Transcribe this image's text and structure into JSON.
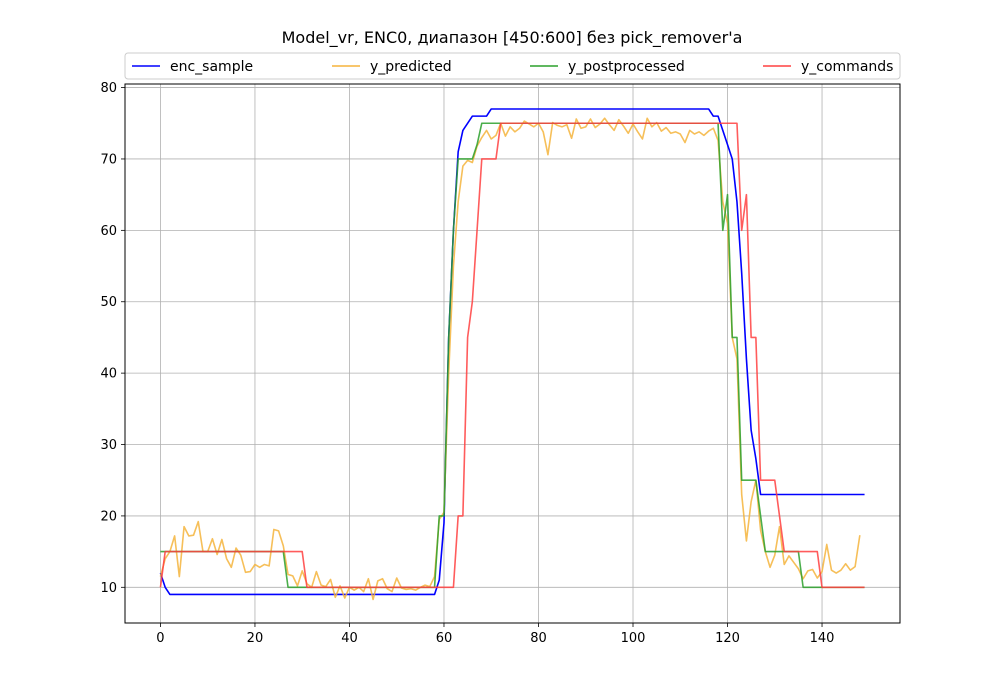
{
  "chart_data": {
    "type": "line",
    "title": "Model_vr, ENC0, диапазон [450:600] без pick_remover'а",
    "xlabel": "",
    "ylabel": "",
    "xlim": [
      -7.5,
      156.5
    ],
    "ylim": [
      5,
      80.5
    ],
    "xticks": [
      0,
      20,
      40,
      60,
      80,
      100,
      120,
      140
    ],
    "yticks": [
      10,
      20,
      30,
      40,
      50,
      60,
      70,
      80
    ],
    "xtick_labels": [
      "0",
      "20",
      "40",
      "60",
      "80",
      "100",
      "120",
      "140"
    ],
    "ytick_labels": [
      "10",
      "20",
      "30",
      "40",
      "50",
      "60",
      "70",
      "80"
    ],
    "grid": true,
    "legend": {
      "placement": "top",
      "columns": 4
    },
    "series": [
      {
        "name": "enc_sample",
        "color": "#0000ff",
        "points": [
          [
            0,
            12
          ],
          [
            1,
            10
          ],
          [
            2,
            9
          ],
          [
            58,
            9
          ],
          [
            59,
            11
          ],
          [
            60,
            19
          ],
          [
            61,
            45
          ],
          [
            62,
            60
          ],
          [
            63,
            71
          ],
          [
            64,
            74
          ],
          [
            65,
            75
          ],
          [
            66,
            76
          ],
          [
            69,
            76
          ],
          [
            70,
            77
          ],
          [
            116,
            77
          ],
          [
            117,
            76
          ],
          [
            118,
            76
          ],
          [
            119,
            74
          ],
          [
            120,
            72
          ],
          [
            121,
            70
          ],
          [
            122,
            64
          ],
          [
            123,
            54
          ],
          [
            124,
            42
          ],
          [
            125,
            32
          ],
          [
            126,
            28
          ],
          [
            127,
            23
          ],
          [
            149,
            23
          ]
        ]
      },
      {
        "name": "y_predicted",
        "color": "#f5b43c",
        "points": [
          [
            0,
            11.5
          ],
          [
            1,
            14
          ],
          [
            2,
            15
          ],
          [
            3,
            17.2
          ],
          [
            4,
            11.5
          ],
          [
            5,
            18.5
          ],
          [
            6,
            17.2
          ],
          [
            7,
            17.3
          ],
          [
            8,
            19.2
          ],
          [
            9,
            15
          ],
          [
            10,
            15
          ],
          [
            11,
            16.8
          ],
          [
            12,
            14.6
          ],
          [
            13,
            16.7
          ],
          [
            14,
            14
          ],
          [
            15,
            12.8
          ],
          [
            16,
            15.5
          ],
          [
            17,
            14.5
          ],
          [
            18,
            12.1
          ],
          [
            19,
            12.2
          ],
          [
            20,
            13.2
          ],
          [
            21,
            12.8
          ],
          [
            22,
            13.2
          ],
          [
            23,
            13
          ],
          [
            24,
            18.1
          ],
          [
            25,
            17.9
          ],
          [
            26,
            15.8
          ],
          [
            27,
            11.8
          ],
          [
            28,
            11.6
          ],
          [
            29,
            10.2
          ],
          [
            30,
            12.3
          ],
          [
            31,
            10.5
          ],
          [
            32,
            10
          ],
          [
            33,
            12.2
          ],
          [
            34,
            10.3
          ],
          [
            35,
            10.1
          ],
          [
            36,
            11.1
          ],
          [
            37,
            8.6
          ],
          [
            38,
            10.2
          ],
          [
            39,
            8.5
          ],
          [
            40,
            10
          ],
          [
            41,
            9.6
          ],
          [
            42,
            10
          ],
          [
            43,
            9.4
          ],
          [
            44,
            11.2
          ],
          [
            45,
            8.3
          ],
          [
            46,
            10.9
          ],
          [
            47,
            11.2
          ],
          [
            48,
            9.8
          ],
          [
            49,
            9.4
          ],
          [
            50,
            11.3
          ],
          [
            51,
            9.9
          ],
          [
            52,
            9.7
          ],
          [
            53,
            9.8
          ],
          [
            54,
            9.6
          ],
          [
            55,
            10
          ],
          [
            56,
            10.3
          ],
          [
            57,
            10.1
          ],
          [
            58,
            11.5
          ],
          [
            59,
            19.5
          ],
          [
            60,
            20.5
          ],
          [
            61,
            40
          ],
          [
            62,
            55
          ],
          [
            63,
            64
          ],
          [
            64,
            69
          ],
          [
            65,
            69.8
          ],
          [
            66,
            69.5
          ],
          [
            67,
            71.8
          ],
          [
            68,
            73
          ],
          [
            69,
            74
          ],
          [
            70,
            72.8
          ],
          [
            71,
            73.3
          ],
          [
            72,
            75
          ],
          [
            73,
            73.2
          ],
          [
            74,
            74.5
          ],
          [
            75,
            73.8
          ],
          [
            76,
            74.3
          ],
          [
            77,
            75.3
          ],
          [
            78,
            74.9
          ],
          [
            79,
            74.5
          ],
          [
            80,
            75
          ],
          [
            81,
            73.8
          ],
          [
            82,
            70.6
          ],
          [
            83,
            75.1
          ],
          [
            84,
            74.7
          ],
          [
            85,
            74.5
          ],
          [
            86,
            74.8
          ],
          [
            87,
            72.9
          ],
          [
            88,
            75.6
          ],
          [
            89,
            74.3
          ],
          [
            90,
            74.5
          ],
          [
            91,
            75.6
          ],
          [
            92,
            74.4
          ],
          [
            93,
            74.9
          ],
          [
            94,
            75.7
          ],
          [
            95,
            74.8
          ],
          [
            96,
            74
          ],
          [
            97,
            75.5
          ],
          [
            98,
            74.6
          ],
          [
            99,
            73.6
          ],
          [
            100,
            74.9
          ],
          [
            101,
            73.8
          ],
          [
            102,
            72.8
          ],
          [
            103,
            75.7
          ],
          [
            104,
            74.5
          ],
          [
            105,
            75.1
          ],
          [
            106,
            73.9
          ],
          [
            107,
            74.4
          ],
          [
            108,
            73.6
          ],
          [
            109,
            73.8
          ],
          [
            110,
            73.5
          ],
          [
            111,
            72.3
          ],
          [
            112,
            74
          ],
          [
            113,
            73.5
          ],
          [
            114,
            73.8
          ],
          [
            115,
            73.3
          ],
          [
            116,
            73.9
          ],
          [
            117,
            74.3
          ],
          [
            118,
            72.6
          ],
          [
            119,
            64
          ],
          [
            120,
            61
          ],
          [
            121,
            45
          ],
          [
            122,
            42
          ],
          [
            123,
            23
          ],
          [
            124,
            16.5
          ],
          [
            125,
            22
          ],
          [
            126,
            25
          ],
          [
            127,
            18
          ],
          [
            128,
            15
          ],
          [
            129,
            12.8
          ],
          [
            130,
            14.5
          ],
          [
            131,
            18.5
          ],
          [
            132,
            13.2
          ],
          [
            133,
            14.4
          ],
          [
            134,
            13.5
          ],
          [
            135,
            12.6
          ],
          [
            136,
            11.2
          ],
          [
            137,
            12.3
          ],
          [
            138,
            12.5
          ],
          [
            139,
            11.3
          ],
          [
            140,
            12.2
          ],
          [
            141,
            16
          ],
          [
            142,
            12.4
          ],
          [
            143,
            12
          ],
          [
            144,
            12.4
          ],
          [
            145,
            13.3
          ],
          [
            146,
            12.4
          ],
          [
            147,
            12.9
          ],
          [
            148,
            17.3
          ]
        ]
      },
      {
        "name": "y_postprocessed",
        "color": "#2ca02c",
        "points": [
          [
            0,
            15
          ],
          [
            26,
            15
          ],
          [
            27,
            10
          ],
          [
            58,
            10
          ],
          [
            59,
            20
          ],
          [
            60,
            20
          ],
          [
            61,
            45
          ],
          [
            62,
            60
          ],
          [
            63,
            70
          ],
          [
            66,
            70
          ],
          [
            67,
            72
          ],
          [
            68,
            75
          ],
          [
            118,
            75
          ],
          [
            119,
            60
          ],
          [
            120,
            65
          ],
          [
            121,
            45
          ],
          [
            122,
            45
          ],
          [
            123,
            25
          ],
          [
            126,
            25
          ],
          [
            127,
            20
          ],
          [
            128,
            15
          ],
          [
            131,
            15
          ],
          [
            132,
            15
          ],
          [
            135,
            15
          ],
          [
            136,
            10
          ],
          [
            149,
            10
          ]
        ]
      },
      {
        "name": "y_commands",
        "color": "#ff4040",
        "points": [
          [
            0,
            10
          ],
          [
            1,
            15
          ],
          [
            30,
            15
          ],
          [
            31,
            10
          ],
          [
            62,
            10
          ],
          [
            63,
            20
          ],
          [
            64,
            20
          ],
          [
            65,
            45
          ],
          [
            66,
            50
          ],
          [
            67,
            60
          ],
          [
            68,
            70
          ],
          [
            71,
            70
          ],
          [
            72,
            75
          ],
          [
            122,
            75
          ],
          [
            123,
            60
          ],
          [
            124,
            65
          ],
          [
            125,
            45
          ],
          [
            126,
            45
          ],
          [
            127,
            25
          ],
          [
            128,
            25
          ],
          [
            130,
            25
          ],
          [
            131,
            20
          ],
          [
            132,
            15
          ],
          [
            139,
            15
          ],
          [
            140,
            10
          ],
          [
            149,
            10
          ]
        ]
      }
    ]
  }
}
